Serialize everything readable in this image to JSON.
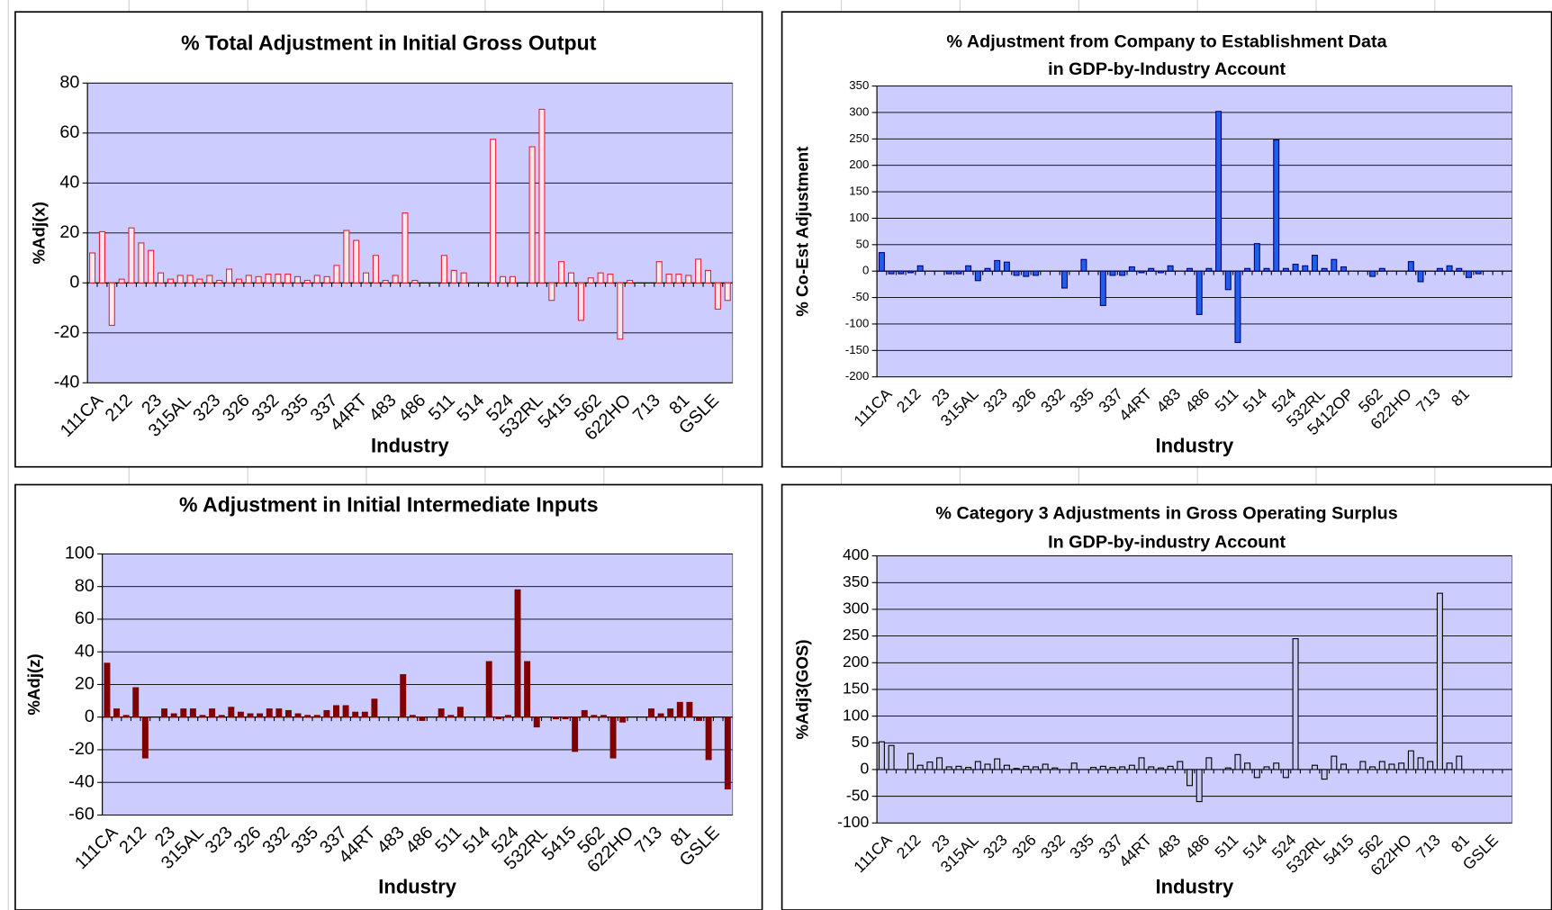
{
  "chart_data": [
    {
      "type": "bar",
      "title": [
        "% Total Adjustment in Initial Gross Output"
      ],
      "x_label": "Industry",
      "y_label": "%Adj(x)",
      "categories": [
        "111CA",
        null,
        null,
        "212",
        null,
        null,
        "23",
        null,
        null,
        "315AL",
        null,
        null,
        "323",
        null,
        null,
        "326",
        null,
        null,
        "332",
        null,
        null,
        "335",
        null,
        null,
        "337",
        null,
        null,
        "44RT",
        null,
        null,
        "483",
        null,
        null,
        "486",
        null,
        null,
        "511",
        null,
        null,
        "514",
        null,
        null,
        "524",
        null,
        null,
        "532RL",
        null,
        null,
        "5415",
        null,
        null,
        "562",
        null,
        null,
        "622HO",
        null,
        null,
        "713",
        null,
        null,
        "81",
        null,
        null,
        "GSLE",
        null,
        null
      ],
      "values": [
        12,
        20.5,
        -17,
        1.5,
        22,
        16,
        13,
        4,
        1.5,
        3,
        3,
        1.5,
        3,
        1,
        5.5,
        1.5,
        3,
        2.5,
        3.5,
        3.5,
        3.5,
        2.5,
        1,
        3,
        2.5,
        7,
        21,
        17,
        4,
        11,
        1,
        3,
        28,
        1,
        0,
        0,
        11,
        5,
        4,
        0,
        0,
        57.5,
        2.5,
        2.5,
        0,
        54.5,
        69.5,
        -7,
        8.5,
        4,
        -15,
        2,
        4,
        3.5,
        -22.5,
        1,
        0,
        0,
        8.5,
        3.5,
        3.5,
        3,
        9.5,
        5,
        -10.5,
        -7
      ],
      "color": "#e8203c",
      "fill_color": "#ffe8ec",
      "ylim": [
        -40,
        80
      ],
      "yticks": [
        -40,
        -20,
        0,
        20,
        40,
        60,
        80
      ],
      "grid": true
    },
    {
      "type": "bar",
      "title": [
        "% Adjustment from Company to Establishment Data",
        "in GDP-by-Industry Account"
      ],
      "x_label": "Industry",
      "y_label": "% Co-Est Adjustment",
      "categories": [
        "111CA",
        null,
        null,
        "212",
        null,
        null,
        "23",
        null,
        null,
        "315AL",
        null,
        null,
        "323",
        null,
        null,
        "326",
        null,
        null,
        "332",
        null,
        null,
        "335",
        null,
        null,
        "337",
        null,
        null,
        "44RT",
        null,
        null,
        "483",
        null,
        null,
        "486",
        null,
        null,
        "511",
        null,
        null,
        "514",
        null,
        null,
        "524",
        null,
        null,
        "532RL",
        null,
        null,
        "5412OP",
        null,
        null,
        "562",
        null,
        null,
        "622HO",
        null,
        null,
        "713",
        null,
        null,
        "81",
        null,
        null,
        null,
        null,
        null
      ],
      "values": [
        35,
        -5,
        -5,
        -3,
        10,
        0,
        0,
        -5,
        -5,
        10,
        -18,
        5,
        20,
        17,
        -8,
        -10,
        -8,
        0,
        0,
        -32,
        0,
        22,
        0,
        -65,
        -8,
        -8,
        8,
        -3,
        5,
        -3,
        10,
        0,
        5,
        -82,
        5,
        302,
        -35,
        -135,
        5,
        52,
        5,
        248,
        5,
        13,
        10,
        30,
        5,
        22,
        8,
        0,
        0,
        -10,
        5,
        0,
        0,
        18,
        -20,
        0,
        5,
        10,
        5,
        -12,
        -5,
        0,
        0,
        0
      ],
      "color": "#000080",
      "fill_color": "#2060e8",
      "ylim": [
        -200,
        350
      ],
      "yticks": [
        -200,
        -150,
        -100,
        -50,
        0,
        50,
        100,
        150,
        200,
        250,
        300,
        350
      ],
      "grid": true
    },
    {
      "type": "bar",
      "title": [
        "% Adjustment in Initial Intermediate Inputs"
      ],
      "x_label": "Industry",
      "y_label": "%Adj(z)",
      "categories": [
        "111CA",
        null,
        null,
        "212",
        null,
        null,
        "23",
        null,
        null,
        "315AL",
        null,
        null,
        "323",
        null,
        null,
        "326",
        null,
        null,
        "332",
        null,
        null,
        "335",
        null,
        null,
        "337",
        null,
        null,
        "44RT",
        null,
        null,
        "483",
        null,
        null,
        "486",
        null,
        null,
        "511",
        null,
        null,
        "514",
        null,
        null,
        "524",
        null,
        null,
        "532RL",
        null,
        null,
        "5415",
        null,
        null,
        "562",
        null,
        null,
        "622HO",
        null,
        null,
        "713",
        null,
        null,
        "81",
        null,
        null,
        "GSLE",
        null,
        null
      ],
      "values": [
        33,
        5,
        1,
        18,
        -25,
        0,
        5,
        2,
        5,
        5,
        1,
        5,
        1,
        6,
        3,
        2,
        2,
        5,
        5,
        4,
        2,
        1,
        1,
        4,
        7,
        7,
        3,
        3,
        11,
        0,
        0,
        26,
        1,
        -2,
        0,
        5,
        1,
        6,
        0,
        0,
        34,
        -1,
        1,
        78,
        34,
        -6,
        0,
        -1,
        -1,
        -21,
        4,
        1,
        1,
        -25,
        -3,
        0,
        0,
        5,
        2,
        5,
        9,
        9,
        -2,
        -26,
        0,
        -44
      ],
      "color": "#800000",
      "fill_color": "#800000",
      "ylim": [
        -60,
        100
      ],
      "yticks": [
        -60,
        -40,
        -20,
        0,
        20,
        40,
        60,
        80,
        100
      ],
      "grid": true
    },
    {
      "type": "bar",
      "title": [
        "% Category 3 Adjustments in Gross Operating Surplus",
        "In GDP-by-industry Account"
      ],
      "x_label": "Industry",
      "y_label": "%Adj3(GOS)",
      "categories": [
        "111CA",
        null,
        null,
        "212",
        null,
        null,
        "23",
        null,
        null,
        "315AL",
        null,
        null,
        "323",
        null,
        null,
        "326",
        null,
        null,
        "332",
        null,
        null,
        "335",
        null,
        null,
        "337",
        null,
        null,
        "44RT",
        null,
        null,
        "483",
        null,
        null,
        "486",
        null,
        null,
        "511",
        null,
        null,
        "514",
        null,
        null,
        "524",
        null,
        null,
        "532RL",
        null,
        null,
        "5415",
        null,
        null,
        "562",
        null,
        null,
        "622HO",
        null,
        null,
        "713",
        null,
        null,
        "81",
        null,
        null,
        "GSLE",
        null,
        null
      ],
      "values": [
        52,
        45,
        0,
        30,
        8,
        14,
        22,
        5,
        6,
        4,
        15,
        10,
        20,
        8,
        2,
        6,
        5,
        10,
        3,
        0,
        12,
        0,
        4,
        6,
        4,
        5,
        8,
        22,
        5,
        3,
        6,
        15,
        -30,
        -60,
        22,
        0,
        3,
        28,
        12,
        -15,
        5,
        12,
        -15,
        245,
        0,
        8,
        -18,
        25,
        10,
        0,
        15,
        5,
        15,
        10,
        12,
        35,
        22,
        15,
        330,
        12,
        25,
        0,
        0,
        0,
        0,
        0
      ],
      "color": "#000000",
      "fill_color": "#c8c8f4",
      "ylim": [
        -100,
        400
      ],
      "yticks": [
        -100,
        -50,
        0,
        50,
        100,
        150,
        200,
        250,
        300,
        350,
        400
      ],
      "grid": true
    }
  ]
}
